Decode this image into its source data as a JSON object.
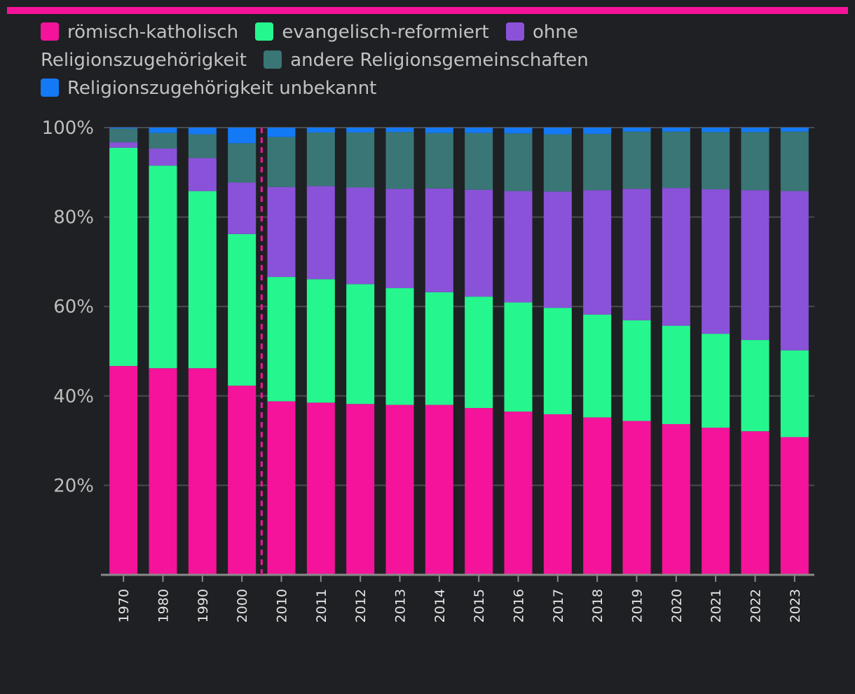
{
  "colors": {
    "accent_bar": "#f4139a",
    "background": "#1f2023",
    "gridline": "#4a4b4f",
    "axis": "#8a8a8a",
    "marker": "#f4139a"
  },
  "chart_data": {
    "type": "bar",
    "stacked": true,
    "title": "",
    "xlabel": "",
    "ylabel": "",
    "ylim": [
      0,
      100
    ],
    "yticks": [
      "20%",
      "40%",
      "60%",
      "80%",
      "100%"
    ],
    "ytick_values": [
      20,
      40,
      60,
      80,
      100
    ],
    "grid": true,
    "legend_position": "top-left",
    "categories": [
      "1970",
      "1980",
      "1990",
      "2000",
      "2010",
      "2011",
      "2012",
      "2013",
      "2014",
      "2015",
      "2016",
      "2017",
      "2018",
      "2019",
      "2020",
      "2021",
      "2022",
      "2023"
    ],
    "marker_line_after": "2000",
    "series": [
      {
        "name": "römisch-katholisch",
        "color": "#f4139a",
        "values": [
          46.7,
          46.2,
          46.2,
          42.3,
          38.8,
          38.5,
          38.2,
          38.0,
          38.0,
          37.3,
          36.5,
          35.9,
          35.2,
          34.4,
          33.7,
          32.9,
          32.1,
          30.8
        ]
      },
      {
        "name": "evangelisch-reformiert",
        "color": "#26f68e",
        "values": [
          48.8,
          45.3,
          39.6,
          33.9,
          27.8,
          27.6,
          26.8,
          26.1,
          25.2,
          24.9,
          24.4,
          23.8,
          23.0,
          22.5,
          22.0,
          21.0,
          20.4,
          19.4
        ]
      },
      {
        "name": "ohne Religionszugehörigkeit",
        "color": "#8a52d9",
        "values": [
          1.2,
          3.8,
          7.4,
          11.5,
          20.1,
          20.8,
          21.6,
          22.2,
          23.2,
          23.9,
          24.9,
          26.0,
          27.8,
          29.4,
          30.8,
          32.3,
          33.5,
          35.6
        ]
      },
      {
        "name": "andere Religionsgemeinschaften",
        "color": "#3a7676",
        "values": [
          3.1,
          3.5,
          5.3,
          8.8,
          11.2,
          12.0,
          12.3,
          12.7,
          12.4,
          12.7,
          12.9,
          12.8,
          12.6,
          12.8,
          12.6,
          12.8,
          13.0,
          13.3
        ]
      },
      {
        "name": "Religionszugehörigkeit unbekannt",
        "color": "#1479f5",
        "values": [
          0.2,
          1.2,
          1.5,
          3.5,
          2.1,
          1.1,
          1.1,
          1.0,
          1.2,
          1.2,
          1.3,
          1.5,
          1.4,
          0.9,
          0.9,
          1.0,
          1.0,
          0.9
        ]
      }
    ]
  }
}
